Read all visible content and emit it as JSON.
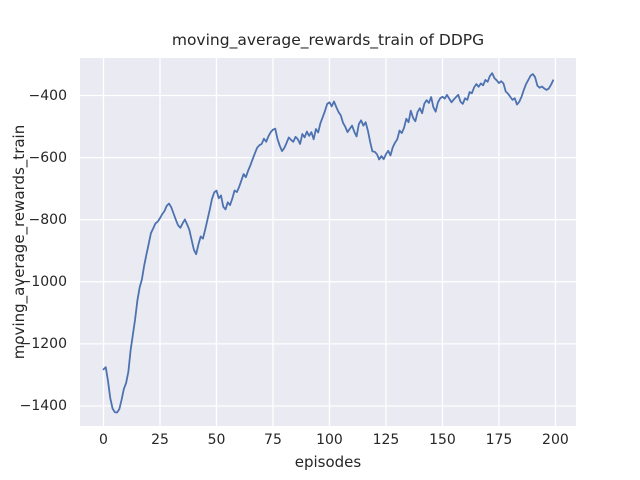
{
  "chart_data": {
    "type": "line",
    "title": "moving_average_rewards_train of DDPG",
    "xlabel": "episodes",
    "ylabel": "moving_average_rewards_train",
    "grid": true,
    "legend": "none",
    "xlim": [
      -10.4,
      209.1
    ],
    "ylim": [
      -1464.4,
      -279.2
    ],
    "x_ticks": [
      0,
      25,
      50,
      75,
      100,
      125,
      150,
      175,
      200
    ],
    "x_tick_labels": [
      "0",
      "25",
      "50",
      "75",
      "100",
      "125",
      "150",
      "175",
      "200"
    ],
    "y_ticks": [
      -400,
      -600,
      -800,
      -1000,
      -1200,
      -1400
    ],
    "y_tick_labels": [
      "−400",
      "−600",
      "−800",
      "−1000",
      "−1200",
      "−1400"
    ],
    "colors": {
      "line": "#4C72B0",
      "plot_background": "#EAEAF2",
      "gridline": "#FFFFFF",
      "figure_background": "#FFFFFF",
      "text": "#262626"
    },
    "series": [
      {
        "name": "moving_average_rewards_train",
        "x_start": 0,
        "x_step": 1,
        "values": [
          -1282,
          -1275,
          -1320,
          -1375,
          -1408,
          -1420,
          -1421,
          -1410,
          -1380,
          -1345,
          -1326,
          -1290,
          -1220,
          -1170,
          -1120,
          -1060,
          -1018,
          -992,
          -948,
          -912,
          -878,
          -843,
          -828,
          -812,
          -806,
          -795,
          -782,
          -772,
          -755,
          -748,
          -760,
          -780,
          -800,
          -818,
          -826,
          -812,
          -799,
          -815,
          -833,
          -865,
          -897,
          -911,
          -880,
          -854,
          -861,
          -832,
          -800,
          -768,
          -733,
          -712,
          -706,
          -731,
          -722,
          -758,
          -767,
          -744,
          -753,
          -732,
          -706,
          -711,
          -695,
          -674,
          -653,
          -663,
          -642,
          -625,
          -605,
          -586,
          -568,
          -560,
          -556,
          -539,
          -549,
          -531,
          -518,
          -510,
          -507,
          -540,
          -562,
          -579,
          -569,
          -553,
          -535,
          -543,
          -549,
          -533,
          -541,
          -556,
          -524,
          -535,
          -516,
          -530,
          -518,
          -541,
          -508,
          -519,
          -489,
          -470,
          -450,
          -427,
          -422,
          -435,
          -419,
          -437,
          -453,
          -464,
          -488,
          -501,
          -518,
          -507,
          -497,
          -517,
          -532,
          -492,
          -480,
          -497,
          -486,
          -513,
          -549,
          -580,
          -581,
          -589,
          -606,
          -595,
          -605,
          -589,
          -578,
          -593,
          -567,
          -552,
          -541,
          -513,
          -521,
          -504,
          -475,
          -486,
          -449,
          -472,
          -483,
          -453,
          -441,
          -457,
          -426,
          -415,
          -424,
          -405,
          -438,
          -452,
          -422,
          -409,
          -404,
          -410,
          -398,
          -410,
          -422,
          -413,
          -405,
          -398,
          -420,
          -427,
          -409,
          -414,
          -389,
          -393,
          -374,
          -363,
          -372,
          -361,
          -367,
          -350,
          -356,
          -337,
          -328,
          -344,
          -351,
          -360,
          -354,
          -361,
          -387,
          -394,
          -404,
          -414,
          -409,
          -429,
          -420,
          -404,
          -382,
          -363,
          -350,
          -336,
          -331,
          -341,
          -368,
          -375,
          -371,
          -377,
          -382,
          -378,
          -366,
          -351
        ]
      }
    ]
  }
}
